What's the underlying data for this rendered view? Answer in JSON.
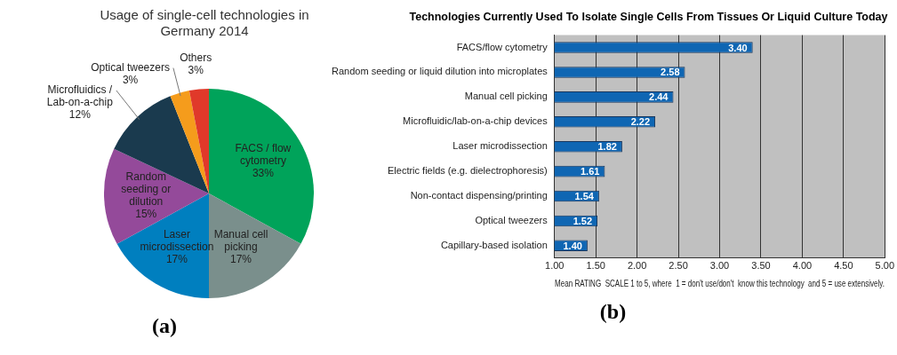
{
  "chart_data": [
    {
      "type": "pie",
      "title": "Usage of single-cell technologies in Germany 2014",
      "categories": [
        "FACS / flow cytometry",
        "Manual cell picking",
        "Laser microdissection",
        "Random seeding or dilution",
        "Microfluidics / Lab-on-a-chip",
        "Optical tweezers",
        "Others"
      ],
      "values": [
        33,
        17,
        17,
        15,
        12,
        3,
        3
      ],
      "colors": [
        "#00a35a",
        "#7a8f8c",
        "#007fbf",
        "#944a9a",
        "#1a3a4e",
        "#f59c1c",
        "#e0392a"
      ],
      "value_labels": [
        "33%",
        "17%",
        "17%",
        "15%",
        "12%",
        "3%",
        "3%"
      ],
      "legend": false,
      "annotations": [
        "(a)"
      ]
    },
    {
      "type": "bar",
      "orientation": "horizontal",
      "title": "Technologies Currently Used To Isolate Single Cells From Tissues Or Liquid Culture Today",
      "categories": [
        "FACS/flow cytometry",
        "Random seeding or liquid dilution into microplates",
        "Manual cell picking",
        "Microfluidic/lab-on-a-chip devices",
        "Laser microdissection",
        "Electric fields (e.g. dielectrophoresis)",
        "Non-contact dispensing/printing",
        "Optical tweezers",
        "Capillary-based isolation"
      ],
      "values": [
        3.4,
        2.58,
        2.44,
        2.22,
        1.82,
        1.61,
        1.54,
        1.52,
        1.4
      ],
      "value_labels": [
        "3.40",
        "2.58",
        "2.44",
        "2.22",
        "1.82",
        "1.61",
        "1.54",
        "1.52",
        "1.40"
      ],
      "color": "#0f66b3",
      "xlim": [
        1,
        5
      ],
      "xticks": [
        {
          "value": 1,
          "label": "1.00"
        },
        {
          "value": 1.5,
          "label": "1.50"
        },
        {
          "value": 2,
          "label": "2.00"
        },
        {
          "value": 2.5,
          "label": "2.50"
        },
        {
          "value": 3,
          "label": "3.00"
        },
        {
          "value": 3.5,
          "label": "3.50"
        },
        {
          "value": 4,
          "label": "4.00"
        },
        {
          "value": 4.5,
          "label": "4.50"
        },
        {
          "value": 5,
          "label": "5.00"
        }
      ],
      "xlabel": "Mean RATING  SCALE 1 to 5, where  1 = don't use/don't  know this technology  and 5 = use extensively.",
      "grid": "x",
      "legend": false,
      "annotations": [
        "(b)"
      ]
    }
  ]
}
